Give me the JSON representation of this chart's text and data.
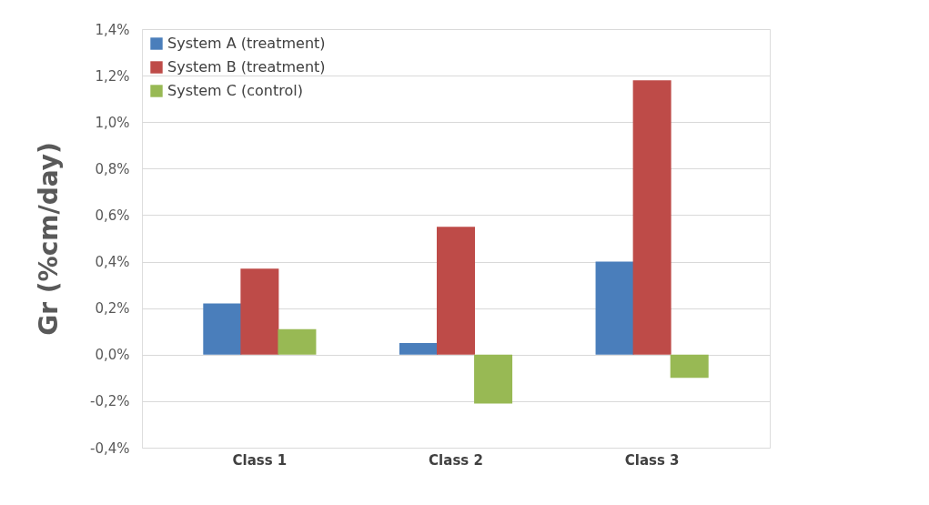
{
  "chart_data": {
    "type": "bar",
    "ylabel": "Gr (%cm/day)",
    "categories": [
      "Class 1",
      "Class 2",
      "Class 3"
    ],
    "series": [
      {
        "name": "System A (treatment)",
        "color": "#4a7ebb",
        "values": [
          0.22,
          0.05,
          0.4
        ]
      },
      {
        "name": "System B (treatment)",
        "color": "#be4b48",
        "values": [
          0.37,
          0.55,
          1.18
        ]
      },
      {
        "name": "System C (control)",
        "color": "#98b954",
        "values": [
          0.11,
          -0.21,
          -0.1
        ]
      }
    ],
    "ylim": [
      -0.4,
      1.4
    ],
    "yticks": [
      {
        "value": -0.4,
        "label": "-0,4%"
      },
      {
        "value": -0.2,
        "label": "-0,2%"
      },
      {
        "value": 0,
        "label": "0,0%"
      },
      {
        "value": 0.2,
        "label": "0,2%"
      },
      {
        "value": 0.4,
        "label": "0,4%"
      },
      {
        "value": 0.6,
        "label": "0,6%"
      },
      {
        "value": 0.8,
        "label": "0,8%"
      },
      {
        "value": 1.0,
        "label": "1,0%"
      },
      {
        "value": 1.2,
        "label": "1,2%"
      },
      {
        "value": 1.4,
        "label": "1,4%"
      }
    ],
    "grid": "y",
    "legend": "top left"
  }
}
